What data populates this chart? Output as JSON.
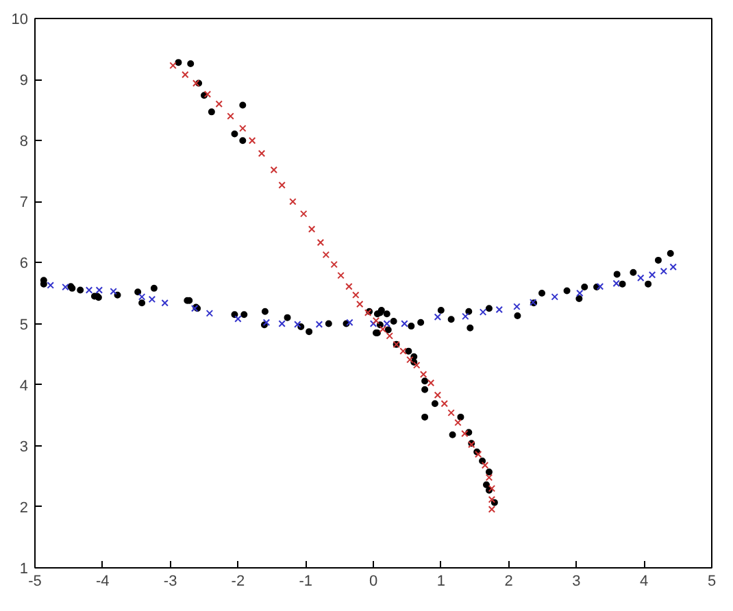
{
  "chart_data": {
    "type": "scatter",
    "xlim": [
      -5,
      5
    ],
    "ylim": [
      1,
      10
    ],
    "xticks": [
      -5,
      -4,
      -3,
      -2,
      -1,
      0,
      1,
      2,
      3,
      4,
      5
    ],
    "yticks": [
      1,
      2,
      3,
      4,
      5,
      6,
      7,
      8,
      9,
      10
    ],
    "grid": false,
    "series": [
      {
        "color": "#000000",
        "marker": "circle",
        "x": [
          -4.87,
          -4.87,
          -4.47,
          -4.45,
          -4.33,
          -4.12,
          -4.08,
          -4.06,
          -3.78,
          -3.48,
          -3.42,
          -3.24,
          -2.75,
          -2.72,
          -2.62,
          -2.6,
          -2.05,
          -1.91,
          -1.61,
          -1.6,
          -1.27,
          -1.07,
          -0.95,
          -0.66,
          -0.4,
          0.12,
          0.06,
          0.2,
          0.04,
          0.3,
          0.56,
          0.7,
          1.0,
          1.15,
          1.41,
          1.43,
          1.71,
          2.13,
          2.37,
          2.49,
          2.86,
          3.04,
          3.12,
          3.3,
          3.6,
          3.68,
          3.84,
          4.06,
          4.21,
          4.39,
          -2.88,
          -2.7,
          -2.58,
          -2.5,
          -2.39,
          -1.93,
          -2.05,
          -1.93,
          -0.06,
          0.1,
          0.06,
          0.1,
          0.22,
          0.34,
          0.52,
          0.6,
          0.6,
          0.76,
          0.76,
          0.91,
          0.76,
          1.29,
          1.17,
          1.41,
          1.45,
          1.53,
          1.61,
          1.71,
          1.67,
          1.71,
          1.79
        ],
        "values": [
          5.71,
          5.65,
          5.61,
          5.58,
          5.55,
          5.45,
          5.45,
          5.43,
          5.47,
          5.52,
          5.34,
          5.58,
          5.38,
          5.38,
          5.27,
          5.25,
          5.15,
          5.15,
          4.98,
          5.2,
          5.1,
          4.95,
          4.87,
          5.0,
          5.0,
          5.22,
          5.16,
          5.16,
          4.85,
          5.04,
          4.96,
          5.02,
          5.22,
          5.07,
          5.2,
          4.93,
          5.25,
          5.13,
          5.34,
          5.5,
          5.54,
          5.41,
          5.6,
          5.6,
          5.81,
          5.65,
          5.84,
          5.65,
          6.04,
          6.15,
          9.28,
          9.26,
          8.94,
          8.74,
          8.47,
          8.58,
          8.11,
          8.0,
          5.2,
          5.18,
          4.85,
          4.98,
          4.9,
          4.66,
          4.55,
          4.46,
          4.37,
          4.06,
          3.92,
          3.69,
          3.47,
          3.47,
          3.18,
          3.22,
          3.04,
          2.9,
          2.75,
          2.57,
          2.36,
          2.27,
          2.07
        ]
      },
      {
        "color": "#3333cc",
        "marker": "cross",
        "x": [
          -4.77,
          -4.55,
          -4.2,
          -4.05,
          -3.84,
          -3.42,
          -3.27,
          -3.08,
          -2.64,
          -2.42,
          -2.0,
          -1.58,
          -1.35,
          -1.12,
          -0.8,
          -0.35,
          0.0,
          0.2,
          0.46,
          0.95,
          1.36,
          1.62,
          1.86,
          2.12,
          2.36,
          2.68,
          3.05,
          3.35,
          3.59,
          3.95,
          4.12,
          4.29,
          4.43
        ],
        "values": [
          5.63,
          5.6,
          5.55,
          5.55,
          5.53,
          5.44,
          5.4,
          5.34,
          5.25,
          5.17,
          5.08,
          5.02,
          5.0,
          4.99,
          4.99,
          5.02,
          5.0,
          5.0,
          5.0,
          5.11,
          5.12,
          5.19,
          5.23,
          5.28,
          5.35,
          5.44,
          5.5,
          5.61,
          5.66,
          5.75,
          5.8,
          5.86,
          5.93
        ]
      },
      {
        "color": "#cc3333",
        "marker": "cross",
        "x": [
          -2.96,
          -2.78,
          -2.62,
          -2.45,
          -2.28,
          -2.11,
          -1.93,
          -1.79,
          -1.65,
          -1.47,
          -1.35,
          -1.19,
          -1.03,
          -0.91,
          -0.78,
          -0.7,
          -0.58,
          -0.48,
          -0.36,
          -0.26,
          -0.2,
          -0.08,
          0.04,
          0.14,
          0.24,
          0.34,
          0.44,
          0.54,
          0.64,
          0.74,
          0.85,
          0.95,
          1.05,
          1.15,
          1.25,
          1.35,
          1.45,
          1.55,
          1.65,
          1.71,
          1.75,
          1.75,
          1.75
        ],
        "values": [
          9.23,
          9.08,
          8.94,
          8.76,
          8.6,
          8.4,
          8.2,
          8.0,
          7.79,
          7.52,
          7.27,
          7.0,
          6.8,
          6.55,
          6.33,
          6.13,
          5.97,
          5.79,
          5.61,
          5.47,
          5.32,
          5.18,
          5.05,
          4.91,
          4.8,
          4.66,
          4.55,
          4.41,
          4.32,
          4.17,
          4.03,
          3.83,
          3.69,
          3.54,
          3.38,
          3.2,
          3.02,
          2.86,
          2.68,
          2.48,
          2.3,
          2.12,
          1.96
        ]
      }
    ]
  }
}
